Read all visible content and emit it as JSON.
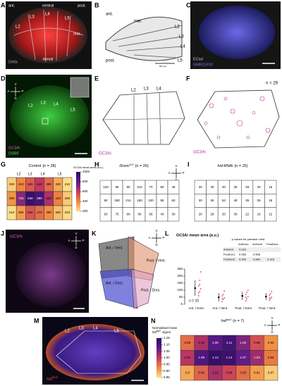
{
  "compass": [
    "A",
    "P",
    "V",
    "D"
  ],
  "colormap": [
    "#fce38a",
    "#f08a3e",
    "#c83a5c",
    "#5a1a8a",
    "#2a0a5a"
  ],
  "A": {
    "letter": "A",
    "ant": "ant.",
    "ventral": "ventral",
    "post": "post.",
    "veins": [
      "L2",
      "L3",
      "L4",
      "L5"
    ],
    "mar": "mar.",
    "dorsal": "dorsal",
    "stain": "Delta"
  },
  "B": {
    "letter": "B",
    "ant": "ant.",
    "mar": "mar.",
    "veins": [
      "L2",
      "L3",
      "L4",
      "L5"
    ],
    "post": "post.",
    "scale": "500 µm"
  },
  "C": {
    "letter": "C",
    "stains": [
      "ECad",
      "GMR11F02"
    ]
  },
  "D": {
    "letter": "D",
    "veins": [
      "L2",
      "L3",
      "L4",
      "L5"
    ],
    "stains": [
      "GC3Ai",
      "DSRF"
    ]
  },
  "E": {
    "letter": "E",
    "veins": [
      "L2",
      "L3",
      "L4"
    ],
    "stain": "GC3Ai"
  },
  "F": {
    "letter": "F",
    "n": "n = 29",
    "stain": "GC3Ai"
  },
  "G": {
    "letter": "G",
    "title": "Control",
    "n": "(n = 28)",
    "veins": [
      "L2",
      "L3",
      "L4",
      "L5"
    ],
    "colorbar_title": "GC3Ai mean area (a.u.)",
    "clim": [
      200,
      1000
    ],
    "cticks": [
      200,
      400,
      600,
      800,
      1000
    ],
    "values": [
      [
        250,
        410,
        520,
        610,
        480,
        330,
        210
      ],
      [
        380,
        720,
        940,
        880,
        650,
        420,
        260
      ],
      [
        210,
        360,
        530,
        470,
        390,
        280,
        220
      ]
    ]
  },
  "H": {
    "letter": "H",
    "title": "Dronc",
    "sup": "KO",
    "n": "(n = 26)",
    "values": [
      [
        120,
        95,
        80,
        110,
        70,
        60,
        45
      ],
      [
        90,
        180,
        211,
        150,
        120,
        85,
        60
      ],
      [
        50,
        75,
        90,
        80,
        65,
        40,
        30
      ]
    ]
  },
  "I": {
    "letter": "I",
    "title": "hid-RNAi",
    "n": "(n = 25)",
    "values": [
      [
        25,
        30,
        40,
        35,
        28,
        20,
        15
      ],
      [
        30,
        45,
        52,
        48,
        35,
        25,
        18
      ],
      [
        20,
        28,
        33,
        30,
        22,
        16,
        12
      ]
    ]
  },
  "J": {
    "letter": "J",
    "stain": "GC3Ai"
  },
  "K": {
    "letter": "K",
    "regions": [
      "Ant. / Vent.",
      "Post. / Vent.",
      "Ant. / Dors.",
      "Post. / Dors."
    ]
  },
  "L": {
    "letter": "L",
    "chart": {
      "type": "dot",
      "title": "GC3Ai mean area (a.u.)",
      "categories": [
        "Ant. / Dors.",
        "Ant. / Vent.",
        "Post. / Dors.",
        "Post. / Vent."
      ],
      "means": [
        115,
        50,
        60,
        55
      ],
      "errors": [
        55,
        30,
        30,
        25
      ],
      "points": [
        [
          60,
          90,
          110,
          130,
          170,
          230,
          80,
          140
        ],
        [
          20,
          35,
          45,
          60,
          70,
          95,
          40
        ],
        [
          25,
          40,
          55,
          70,
          85,
          100,
          50
        ],
        [
          30,
          40,
          50,
          65,
          75,
          90,
          45
        ]
      ],
      "ylim": [
        0,
        250
      ],
      "yticks": [
        0,
        50,
        100,
        150,
        200,
        250
      ],
      "n": "n = 10",
      "color": "#d0405a",
      "table": {
        "title": "p-values for pairwise t-test",
        "columns": [
          "AntDors",
          "AntVent",
          "PostDors"
        ],
        "rows": [
          {
            "name": "AntVent",
            "values": [
              0.015
            ]
          },
          {
            "name": "PostDors",
            "values": [
              0.056,
              0.558
            ]
          },
          {
            "name": "PostVent",
            "values": [
              0.005,
              0.684,
              0.323
            ]
          }
        ]
      }
    }
  },
  "M": {
    "letter": "M",
    "veins": [
      "L2",
      "L3",
      "L4",
      "L5"
    ],
    "stain": "hid",
    "sup": "lacZ"
  },
  "N": {
    "letter": "N",
    "title": "hid",
    "sup": "lacZ",
    "n": "(n = 7)",
    "colorbar_title": "Normalised mean",
    "cbar_word": "hid",
    "cbar_sup": "lacZ",
    "cbar_rest": "signal",
    "clim": [
      0.85,
      1.15
    ],
    "cticks": [
      0.85,
      {
        "value": 0.9,
        "label": "0.90"
      },
      0.95,
      {
        "value": 1,
        "label": "1.00"
      },
      1.05,
      {
        "value": 1.1,
        "label": "1.10"
      },
      1.15
    ],
    "values": [
      [
        0.95,
        1.02,
        1.08,
        1.11,
        1.05,
        0.98,
        0.92
      ],
      [
        1.01,
        1.09,
        1.13,
        1.12,
        1.07,
        1.03,
        0.94
      ],
      [
        0.9,
        0.96,
        1.02,
        0.99,
        0.95,
        0.91,
        0.87
      ]
    ]
  }
}
